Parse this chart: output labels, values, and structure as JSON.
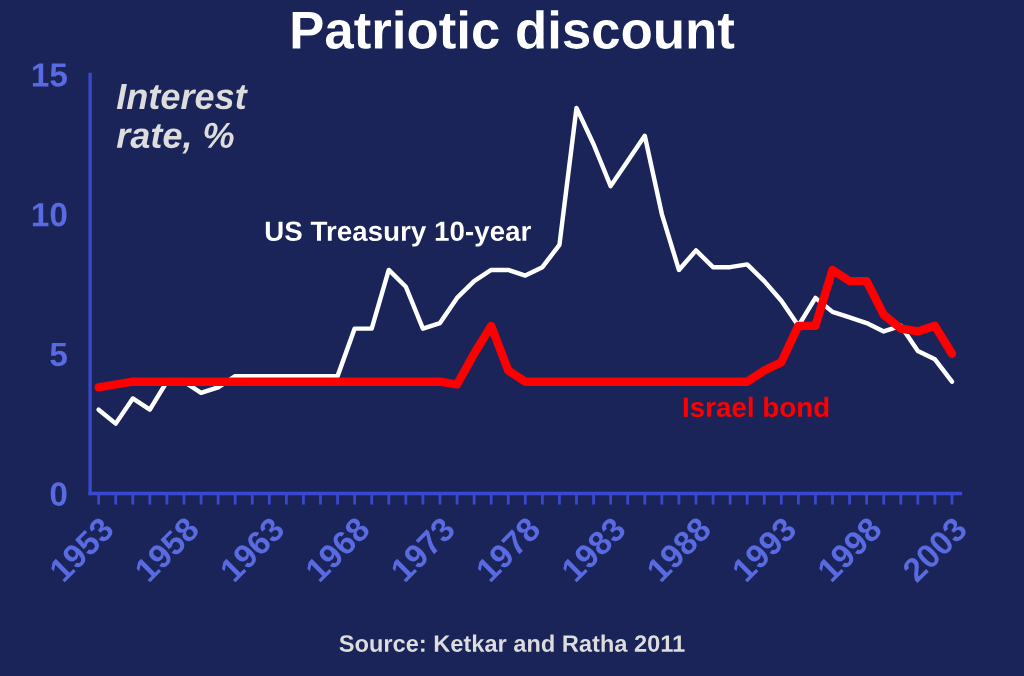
{
  "chart_data": {
    "type": "line",
    "title": "Patriotic discount",
    "ylabel": "Interest rate, %",
    "x": [
      1953,
      1954,
      1955,
      1956,
      1957,
      1958,
      1959,
      1960,
      1961,
      1962,
      1963,
      1964,
      1965,
      1966,
      1967,
      1968,
      1969,
      1970,
      1971,
      1972,
      1973,
      1974,
      1975,
      1976,
      1977,
      1978,
      1979,
      1980,
      1981,
      1982,
      1983,
      1984,
      1985,
      1986,
      1987,
      1988,
      1989,
      1990,
      1991,
      1992,
      1993,
      1994,
      1995,
      1996,
      1997,
      1998,
      1999,
      2000,
      2001,
      2002,
      2003
    ],
    "series": [
      {
        "name": "US Treasury 10-year",
        "color": "#ffffff",
        "values": [
          3.0,
          2.5,
          3.4,
          3.0,
          4.0,
          4.0,
          3.6,
          3.8,
          4.2,
          null,
          null,
          null,
          null,
          4.2,
          4.2,
          5.9,
          5.9,
          8.0,
          7.4,
          5.9,
          6.1,
          7.0,
          7.6,
          8.0,
          8.0,
          7.8,
          8.1,
          8.9,
          13.8,
          12.5,
          11.0,
          11.9,
          12.8,
          10.0,
          8.0,
          8.7,
          8.1,
          8.1,
          8.2,
          7.6,
          6.9,
          6.0,
          7.0,
          6.5,
          6.3,
          6.1,
          5.8,
          6.0,
          5.1,
          4.8,
          4.0
        ]
      },
      {
        "name": "Israel bond",
        "color": "#ff0000",
        "values": [
          3.8,
          3.9,
          4.0,
          4.0,
          4.0,
          4.0,
          4.0,
          4.0,
          4.0,
          4.0,
          4.0,
          4.0,
          4.0,
          4.0,
          4.0,
          4.0,
          4.0,
          4.0,
          4.0,
          4.0,
          4.0,
          3.9,
          5.0,
          6.0,
          4.4,
          4.0,
          4.0,
          4.0,
          4.0,
          4.0,
          4.0,
          4.0,
          4.0,
          4.0,
          4.0,
          4.0,
          4.0,
          4.0,
          4.0,
          4.4,
          4.7,
          6.0,
          6.0,
          8.0,
          7.6,
          7.6,
          6.4,
          5.9,
          5.8,
          6.0,
          5.0
        ]
      }
    ],
    "xlim": [
      1952.5,
      2003.5
    ],
    "xticks": [
      1953,
      {
        "value": 1954,
        "label": null
      },
      {
        "value": 1955,
        "label": null
      },
      {
        "value": 1956,
        "label": null
      },
      {
        "value": 1957,
        "label": null
      },
      1958,
      {
        "value": 1959,
        "label": null
      },
      {
        "value": 1960,
        "label": null
      },
      {
        "value": 1961,
        "label": null
      },
      {
        "value": 1962,
        "label": null
      },
      1963,
      {
        "value": 1964,
        "label": null
      },
      {
        "value": 1965,
        "label": null
      },
      {
        "value": 1966,
        "label": null
      },
      {
        "value": 1967,
        "label": null
      },
      1968,
      {
        "value": 1969,
        "label": null
      },
      {
        "value": 1970,
        "label": null
      },
      {
        "value": 1971,
        "label": null
      },
      {
        "value": 1972,
        "label": null
      },
      1973,
      {
        "value": 1974,
        "label": null
      },
      {
        "value": 1975,
        "label": null
      },
      {
        "value": 1976,
        "label": null
      },
      {
        "value": 1977,
        "label": null
      },
      1978,
      {
        "value": 1979,
        "label": null
      },
      {
        "value": 1980,
        "label": null
      },
      {
        "value": 1981,
        "label": null
      },
      {
        "value": 1982,
        "label": null
      },
      1983,
      {
        "value": 1984,
        "label": null
      },
      {
        "value": 1985,
        "label": null
      },
      {
        "value": 1986,
        "label": null
      },
      {
        "value": 1987,
        "label": null
      },
      1988,
      {
        "value": 1989,
        "label": null
      },
      {
        "value": 1990,
        "label": null
      },
      {
        "value": 1991,
        "label": null
      },
      {
        "value": 1992,
        "label": null
      },
      1993,
      {
        "value": 1994,
        "label": null
      },
      {
        "value": 1995,
        "label": null
      },
      {
        "value": 1996,
        "label": null
      },
      {
        "value": 1997,
        "label": null
      },
      1998,
      {
        "value": 1999,
        "label": null
      },
      {
        "value": 2000,
        "label": null
      },
      {
        "value": 2001,
        "label": null
      },
      {
        "value": 2002,
        "label": null
      },
      2003
    ],
    "ylim": [
      0,
      15
    ],
    "yticks": [
      0,
      5,
      10,
      15
    ],
    "grid": false,
    "legend": false,
    "marker": "none",
    "line_style": "solid",
    "annotations": [
      "Source: Ketkar and Ratha 2011"
    ]
  }
}
